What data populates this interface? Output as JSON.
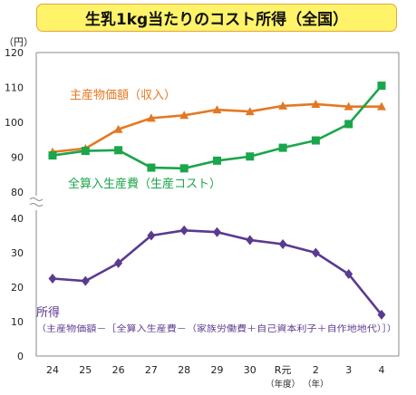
{
  "title": "生乳1kg当たりのコスト所得（全国）",
  "unit_label": "（円）",
  "chart_data": [
    {
      "type": "line",
      "panel": "upper",
      "ylim": [
        80,
        120
      ],
      "yticks": [
        "120",
        "110",
        "100",
        "90",
        "80"
      ],
      "categories": [
        "24",
        "25",
        "26",
        "27",
        "28",
        "29",
        "30",
        "R元",
        "2",
        "3",
        "4"
      ],
      "category_sublabels": {
        "R元": "（年度）",
        "2": "（年）"
      },
      "series": [
        {
          "name": "主産物価額（収入）",
          "color": "#e47822",
          "marker": "triangle",
          "values": [
            91.5,
            92.5,
            98,
            101.2,
            102,
            103.6,
            103.1,
            104.7,
            105.2,
            104.5,
            104.5
          ]
        },
        {
          "name": "全算入生産費（生産コスト）",
          "color": "#1aa64a",
          "marker": "square",
          "values": [
            90.5,
            91.8,
            92,
            87,
            86.8,
            89,
            90.2,
            92.7,
            94.8,
            99.5,
            110.5
          ]
        }
      ],
      "grid": false
    },
    {
      "type": "line",
      "panel": "lower",
      "ylim": [
        0,
        40
      ],
      "yticks": [
        "40",
        "30",
        "20",
        "10",
        "0"
      ],
      "categories": [
        "24",
        "25",
        "26",
        "27",
        "28",
        "29",
        "30",
        "R元",
        "2",
        "3",
        "4"
      ],
      "series": [
        {
          "name": "所得",
          "color": "#5b3a8f",
          "marker": "diamond",
          "values": [
            22.5,
            21.8,
            27,
            35,
            36.5,
            36,
            33.7,
            32.5,
            30,
            23.8,
            12
          ]
        }
      ],
      "annotation_title": "所得",
      "annotation_formula": "（主産物価額－［全算入生産費－（家族労働費＋自己資本利子＋自作地地代）］）",
      "grid": false
    }
  ]
}
